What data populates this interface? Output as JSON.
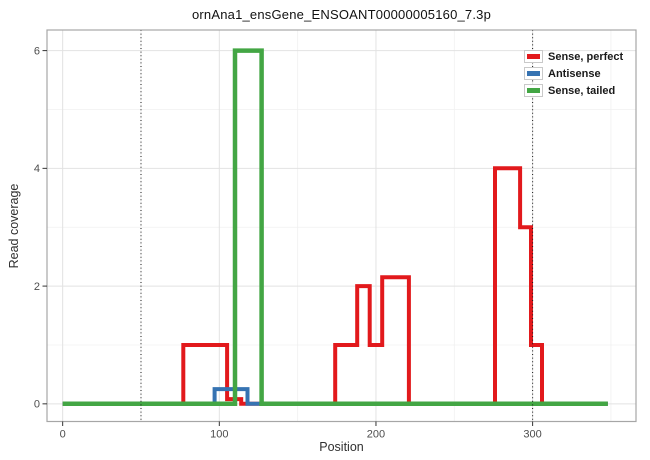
{
  "chart_data": {
    "type": "line",
    "subtype": "step",
    "title": "ornAna1_ensGene_ENSOANT00000005160_7.3p",
    "xlabel": "Position",
    "ylabel": "Read coverage",
    "xlim": [
      -10,
      366
    ],
    "ylim": [
      -0.3,
      6.35
    ],
    "x_major_ticks": [
      0,
      100,
      200,
      300
    ],
    "y_major_ticks": [
      0,
      2,
      4,
      6
    ],
    "x_minor_ticks": [
      50,
      150,
      250,
      350
    ],
    "y_minor_ticks": [
      1,
      3,
      5
    ],
    "grid": true,
    "legend_position": "top-right-inside",
    "reference_lines": {
      "style": "dotted",
      "x_values": [
        50,
        300
      ]
    },
    "legend": [
      {
        "label": "Sense, perfect",
        "color": "#e2191c"
      },
      {
        "label": "Antisense",
        "color": "#3673b2"
      },
      {
        "label": "Sense, tailed",
        "color": "#43a644"
      }
    ],
    "series": [
      {
        "name": "Sense, perfect",
        "color": "#e2191c",
        "width": 4,
        "points": [
          [
            0,
            0
          ],
          [
            77,
            0
          ],
          [
            77,
            1
          ],
          [
            105,
            1
          ],
          [
            105,
            0.08
          ],
          [
            114,
            0.08
          ],
          [
            114,
            0
          ],
          [
            174,
            0
          ],
          [
            174,
            1
          ],
          [
            188,
            1
          ],
          [
            188,
            2
          ],
          [
            196,
            2
          ],
          [
            196,
            1
          ],
          [
            204,
            1
          ],
          [
            204,
            2.15
          ],
          [
            221,
            2.15
          ],
          [
            221,
            0
          ],
          [
            276,
            0
          ],
          [
            276,
            4
          ],
          [
            292,
            4
          ],
          [
            292,
            3
          ],
          [
            299,
            3
          ],
          [
            299,
            1
          ],
          [
            306,
            1
          ],
          [
            306,
            0
          ],
          [
            348,
            0
          ]
        ]
      },
      {
        "name": "Antisense",
        "color": "#3673b2",
        "width": 4,
        "points": [
          [
            0,
            0
          ],
          [
            97,
            0
          ],
          [
            97,
            0.25
          ],
          [
            118,
            0.25
          ],
          [
            118,
            0
          ],
          [
            348,
            0
          ]
        ]
      },
      {
        "name": "Sense, tailed",
        "color": "#43a644",
        "width": 4.5,
        "points": [
          [
            0,
            0
          ],
          [
            110,
            0
          ],
          [
            110,
            6
          ],
          [
            127,
            6
          ],
          [
            127,
            0
          ],
          [
            348,
            0
          ]
        ]
      }
    ]
  },
  "colors": {
    "grid_major": "#e2e2e2",
    "grid_minor": "#f0f0f0",
    "panel_border": "#a6a6a6",
    "tick_mark": "#333333",
    "tick_label": "#4d4d4d",
    "axis_title": "#303030",
    "reference_line": "#1a1a1a"
  }
}
